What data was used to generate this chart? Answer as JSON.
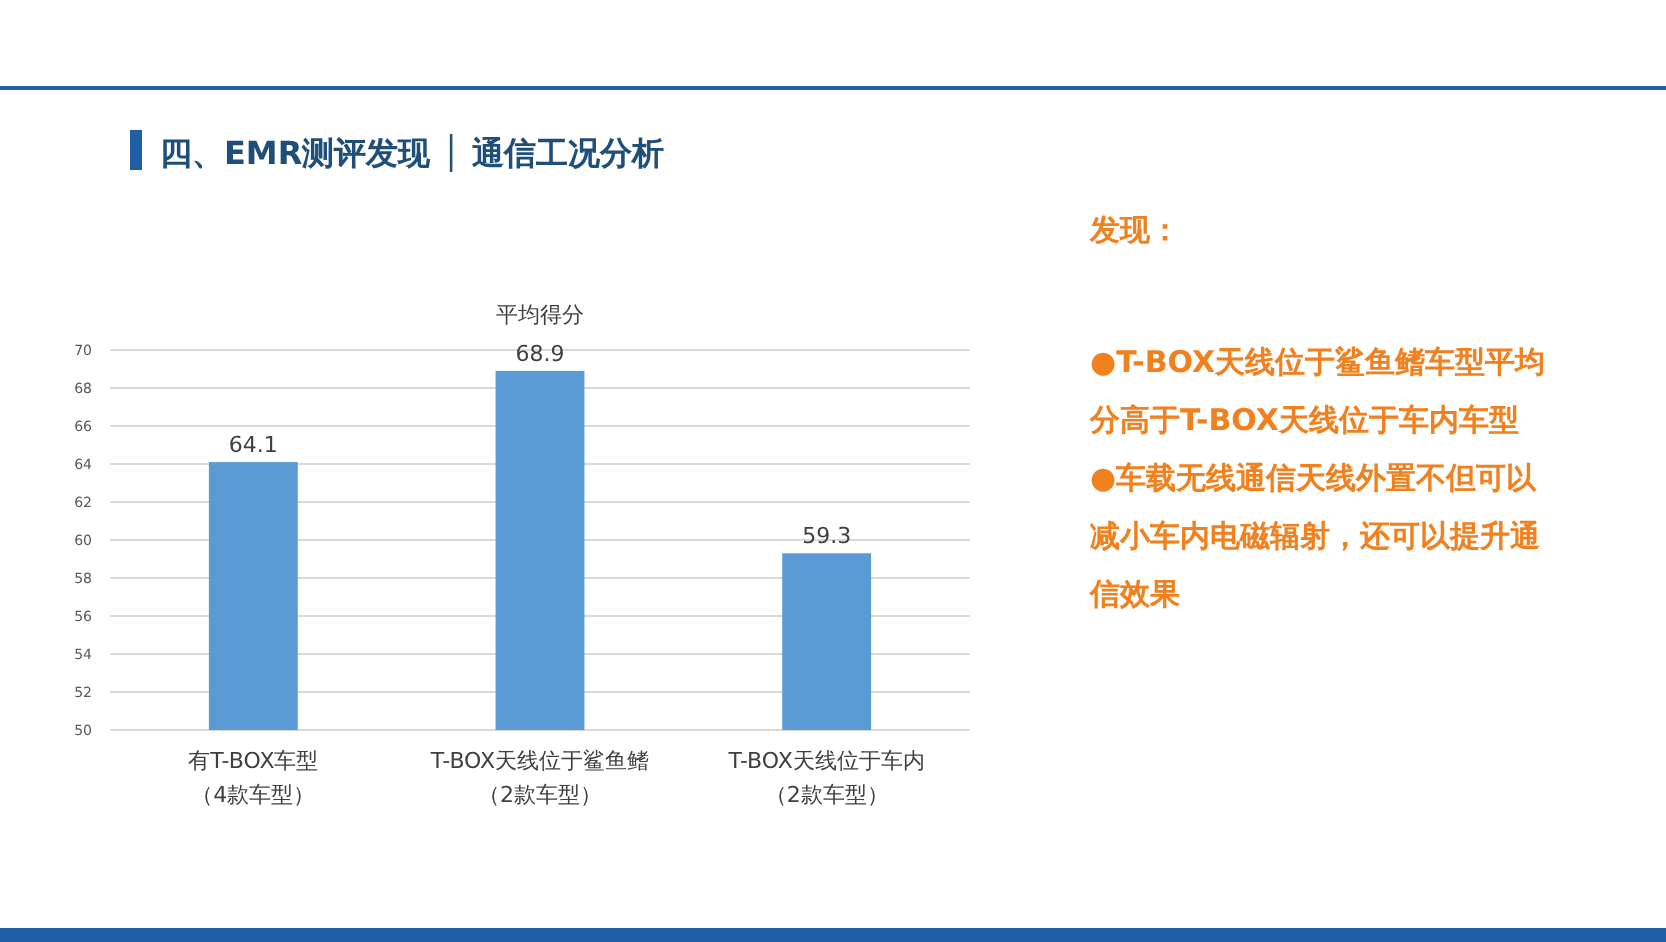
{
  "chart_data": {
    "type": "bar",
    "title": "四、EMR测评发现 │ 通信工况分析",
    "subtitle": "平均得分",
    "categories": [
      "有T-BOX车型（4款车型）",
      "T-BOX天线位于鲨鱼鳍（2款车型）",
      "T-BOX天线位于车内（2款车型）"
    ],
    "values": [
      64.1,
      68.9,
      59.3
    ],
    "color": "#5b9bd5",
    "ylim": [
      50,
      70
    ],
    "yticks": [
      50,
      52,
      54,
      56,
      58,
      60,
      62,
      64,
      66,
      68,
      70
    ],
    "grid": "y",
    "data_labels": true,
    "annotations": [
      "发现：",
      "●T-BOX天线位于鲨鱼鳍车型平均分高于T-BOX天线位于车内车型",
      "●车载无线通信天线外置不但可以减小车内电磁辐射，还可以提升通信效果"
    ]
  }
}
